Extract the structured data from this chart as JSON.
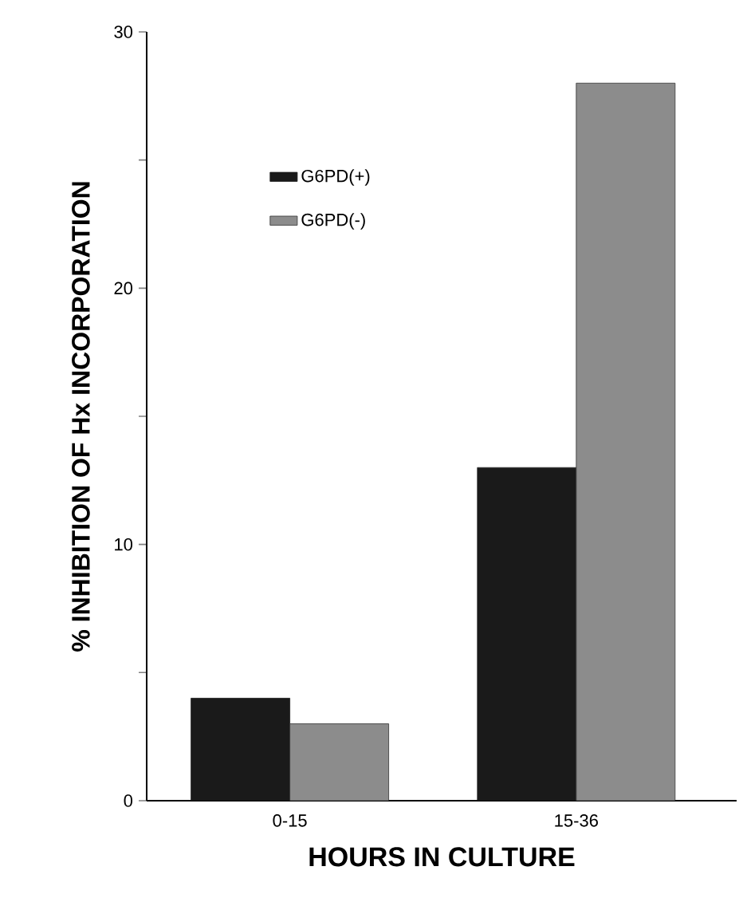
{
  "chart_data": {
    "type": "bar",
    "xlabel": "HOURS IN CULTURE",
    "ylabel": "% INHIBITION OF Hx INCORPORATION",
    "categories": [
      "0-15",
      "15-36"
    ],
    "series": [
      {
        "name": "G6PD(+)",
        "color": "#1a1a1a",
        "values": [
          4,
          13
        ]
      },
      {
        "name": "G6PD(-)",
        "color": "#8c8c8c",
        "values": [
          3,
          28
        ]
      }
    ],
    "ylim": [
      0,
      30
    ],
    "yticks": [
      0,
      {
        "value": 5,
        "label": null
      },
      10,
      {
        "value": 15,
        "label": null
      },
      20,
      {
        "value": 25,
        "label": null
      },
      30
    ],
    "legend": "top left",
    "grid": false
  }
}
